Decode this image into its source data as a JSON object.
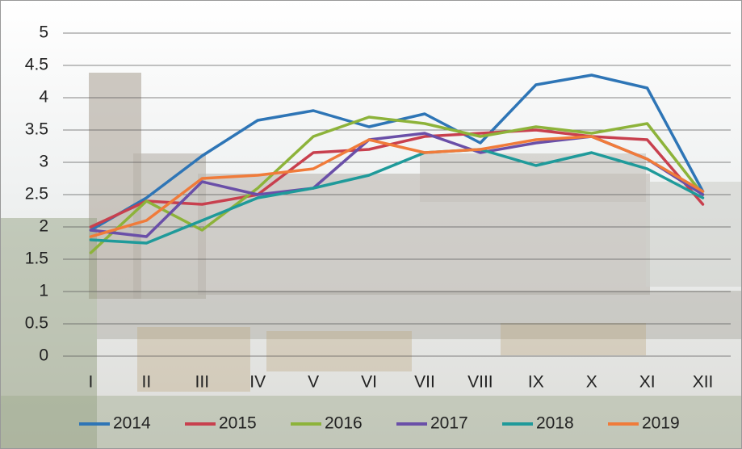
{
  "chart_data": {
    "type": "line",
    "categories": [
      "I",
      "II",
      "III",
      "IV",
      "V",
      "VI",
      "VII",
      "VIII",
      "IX",
      "X",
      "XI",
      "XII"
    ],
    "series": [
      {
        "name": "2014",
        "color": "#2e75b6",
        "values": [
          1.95,
          2.45,
          3.1,
          3.65,
          3.8,
          3.55,
          3.75,
          3.3,
          4.2,
          4.35,
          4.15,
          2.55
        ]
      },
      {
        "name": "2015",
        "color": "#c8404e",
        "values": [
          2.0,
          2.4,
          2.35,
          2.5,
          3.15,
          3.2,
          3.4,
          3.45,
          3.5,
          3.4,
          3.35,
          2.35
        ]
      },
      {
        "name": "2016",
        "color": "#8db33a",
        "values": [
          1.6,
          2.4,
          1.95,
          2.6,
          3.4,
          3.7,
          3.6,
          3.4,
          3.55,
          3.45,
          3.6,
          2.5
        ]
      },
      {
        "name": "2017",
        "color": "#6a4fa8",
        "values": [
          1.95,
          1.85,
          2.7,
          2.5,
          2.6,
          3.35,
          3.45,
          3.15,
          3.3,
          3.4,
          3.05,
          2.5
        ]
      },
      {
        "name": "2018",
        "color": "#1f9a9a",
        "values": [
          1.8,
          1.75,
          2.1,
          2.45,
          2.6,
          2.8,
          3.15,
          3.2,
          2.95,
          3.15,
          2.9,
          2.45
        ]
      },
      {
        "name": "2019",
        "color": "#f07b3a",
        "values": [
          1.85,
          2.1,
          2.75,
          2.8,
          2.9,
          3.35,
          3.15,
          3.2,
          3.35,
          3.4,
          3.05,
          2.55
        ]
      }
    ],
    "ylim": [
      0,
      5
    ],
    "yticks": [
      0,
      0.5,
      1,
      1.5,
      2,
      2.5,
      3,
      3.5,
      4,
      4.5,
      5
    ],
    "grid": true,
    "legend": "bottom"
  }
}
